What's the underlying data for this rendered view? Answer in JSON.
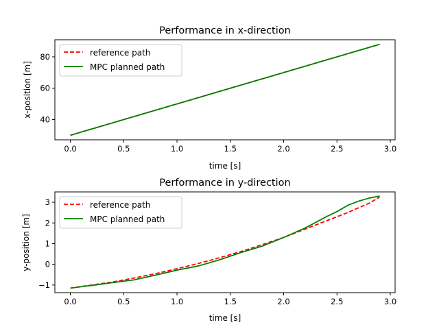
{
  "chart_data": [
    {
      "type": "line",
      "title": "Performance in x-direction",
      "xlabel": "time [s]",
      "ylabel": "x-position [m]",
      "xlim": [
        -0.145,
        3.045
      ],
      "ylim": [
        27.1,
        90.9
      ],
      "xticks": [
        0.0,
        0.5,
        1.0,
        1.5,
        2.0,
        2.5,
        3.0
      ],
      "xtick_labels": [
        "0.0",
        "0.5",
        "1.0",
        "1.5",
        "2.0",
        "2.5",
        "3.0"
      ],
      "yticks": [
        40,
        60,
        80
      ],
      "ytick_labels": [
        "40",
        "60",
        "80"
      ],
      "grid": false,
      "legend_position": "upper-left",
      "series": [
        {
          "name": "reference path",
          "color": "#ff0000",
          "style": "dashed",
          "x": [
            0.0,
            2.9
          ],
          "y": [
            30.0,
            88.0
          ]
        },
        {
          "name": "MPC planned path",
          "color": "#008000",
          "style": "solid",
          "x": [
            0.0,
            2.9
          ],
          "y": [
            30.0,
            88.0
          ]
        }
      ]
    },
    {
      "type": "line",
      "title": "Performance in y-direction",
      "xlabel": "time [s]",
      "ylabel": "y-position [m]",
      "xlim": [
        -0.145,
        3.045
      ],
      "ylim": [
        -1.37,
        3.5
      ],
      "xticks": [
        0.0,
        0.5,
        1.0,
        1.5,
        2.0,
        2.5,
        3.0
      ],
      "xtick_labels": [
        "0.0",
        "0.5",
        "1.0",
        "1.5",
        "2.0",
        "2.5",
        "3.0"
      ],
      "yticks": [
        -1,
        0,
        1,
        2,
        3
      ],
      "ytick_labels": [
        "−1",
        "0",
        "1",
        "2",
        "3"
      ],
      "grid": false,
      "legend_position": "upper-left",
      "series": [
        {
          "name": "reference path",
          "color": "#ff0000",
          "style": "dashed",
          "x": [
            0.0,
            0.2,
            0.4,
            0.6,
            0.8,
            1.0,
            1.2,
            1.4,
            1.6,
            1.8,
            2.0,
            2.2,
            2.4,
            2.6,
            2.8,
            2.9
          ],
          "y": [
            -1.15,
            -1.0,
            -0.85,
            -0.66,
            -0.45,
            -0.21,
            0.04,
            0.32,
            0.62,
            0.95,
            1.3,
            1.7,
            2.1,
            2.5,
            2.95,
            3.25
          ]
        },
        {
          "name": "MPC planned path",
          "color": "#008000",
          "style": "solid",
          "x": [
            0.0,
            0.2,
            0.4,
            0.6,
            0.8,
            1.0,
            1.2,
            1.4,
            1.6,
            1.8,
            2.0,
            2.2,
            2.4,
            2.5,
            2.6,
            2.7,
            2.8,
            2.9
          ],
          "y": [
            -1.15,
            -1.02,
            -0.88,
            -0.75,
            -0.52,
            -0.28,
            -0.08,
            0.22,
            0.57,
            0.88,
            1.3,
            1.75,
            2.3,
            2.55,
            2.85,
            3.05,
            3.2,
            3.3
          ]
        }
      ]
    }
  ]
}
